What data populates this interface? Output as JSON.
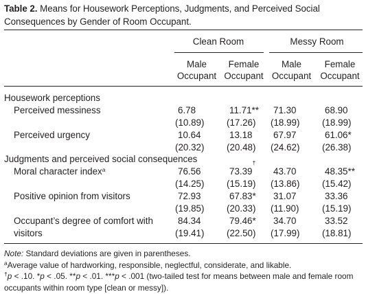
{
  "caption": {
    "label": "Table 2.",
    "text": "Means for Housework Perceptions, Judgments, and Perceived Social Consequences by Gender of Room Occupant."
  },
  "header": {
    "groups": [
      "Clean Room",
      "Messy Room"
    ],
    "columns": [
      {
        "line1": "Male",
        "line2": "Occupant"
      },
      {
        "line1": "Female",
        "line2": "Occupant"
      },
      {
        "line1": "Male",
        "line2": "Occupant"
      },
      {
        "line1": "Female",
        "line2": "Occupant"
      }
    ]
  },
  "sections": [
    {
      "title": "Housework perceptions",
      "rows": [
        {
          "label": "Perceived messiness",
          "label_sup": "",
          "means": [
            {
              "v": "6.78",
              "s": ""
            },
            {
              "v": "11.71",
              "s": "**"
            },
            {
              "v": "71.30",
              "s": ""
            },
            {
              "v": "68.90",
              "s": ""
            }
          ],
          "sds": [
            "(10.89)",
            "(17.26)",
            "(18.99)",
            "(18.99)"
          ]
        },
        {
          "label": "Perceived urgency",
          "label_sup": "",
          "means": [
            {
              "v": "10.64",
              "s": ""
            },
            {
              "v": "13.18",
              "s": ""
            },
            {
              "v": "67.97",
              "s": ""
            },
            {
              "v": "61.06",
              "s": "*"
            }
          ],
          "sds": [
            "(20.32)",
            "(20.48)",
            "(24.62)",
            "(26.38)"
          ]
        }
      ]
    },
    {
      "title": "Judgments and perceived social consequences",
      "rows": [
        {
          "label": "Moral character index",
          "label_sup": "a",
          "means": [
            {
              "v": "76.56",
              "s": ""
            },
            {
              "v": "73.39",
              "s": "†"
            },
            {
              "v": "43.70",
              "s": ""
            },
            {
              "v": "48.35",
              "s": "**"
            }
          ],
          "sds": [
            "(14.25)",
            "(15.19)",
            "(13.86)",
            "(15.42)"
          ]
        },
        {
          "label": "Positive opinion from visitors",
          "label_sup": "",
          "means": [
            {
              "v": "72.93",
              "s": ""
            },
            {
              "v": "67.83",
              "s": "*"
            },
            {
              "v": "31.07",
              "s": ""
            },
            {
              "v": "33.36",
              "s": ""
            }
          ],
          "sds": [
            "(19.85)",
            "(20.33)",
            "(11.90)",
            "(15.19)"
          ]
        },
        {
          "label": "Occupant’s degree of comfort with",
          "label2": "visitors",
          "label_sup": "",
          "means": [
            {
              "v": "84.34",
              "s": ""
            },
            {
              "v": "79.46",
              "s": "*"
            },
            {
              "v": "34.70",
              "s": ""
            },
            {
              "v": "33.52",
              "s": ""
            }
          ],
          "sds": [
            "(19.41)",
            "(22.50)",
            "(17.99)",
            "(18.81)"
          ]
        }
      ]
    }
  ],
  "notes": {
    "note_label": "Note:",
    "note_text": " Standard deviations are given in parentheses.",
    "a_mark": "a",
    "a_text": "Average value of hardworking, responsible, neglectful, considerate, and likable.",
    "sig_mark": "†",
    "sig_text_1": "p",
    "sig_text_2": " < .10. *",
    "sig_text_3": "p",
    "sig_text_4": " < .05. **",
    "sig_text_5": "p",
    "sig_text_6": " < .01. ***",
    "sig_text_7": "p",
    "sig_text_8": " < .001 (two-tailed test for means between male and female room occupants within room type [clean or messy])."
  }
}
